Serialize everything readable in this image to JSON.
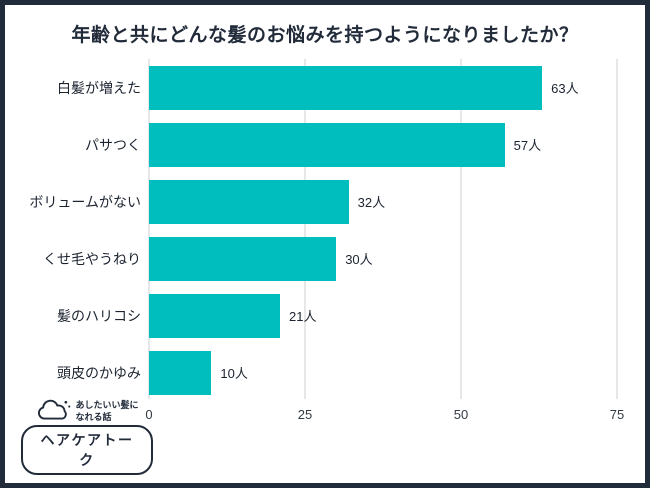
{
  "page": {
    "title": "年齢と共にどんな髪のお悩みを持つようになりましたか？"
  },
  "chart_data": {
    "type": "bar",
    "orientation": "horizontal",
    "title": "年齢と共にどんな髪のお悩みを持つようになりましたか？",
    "categories": [
      "白髪が増えた",
      "パサつく",
      "ボリュームがない",
      "くせ毛やうねり",
      "髪のハリコシ",
      "頭皮のかゆみ"
    ],
    "values": [
      63,
      57,
      32,
      30,
      21,
      10
    ],
    "value_labels": [
      "63人",
      "57人",
      "32人",
      "30人",
      "21人",
      "10人"
    ],
    "xlim": [
      0,
      75
    ],
    "x_ticks": [
      0,
      25,
      50,
      75
    ],
    "grid": true,
    "legend": "none",
    "bar_color": "#00bebe"
  },
  "logo": {
    "tagline_line1": "あしたいい髪に",
    "tagline_line2": "なれる話",
    "name": "ヘアケアトーク"
  },
  "colors": {
    "frame_border": "#222b3a",
    "bar": "#00bebe",
    "gridline": "#cfcfcf",
    "text": "#1c2430"
  }
}
